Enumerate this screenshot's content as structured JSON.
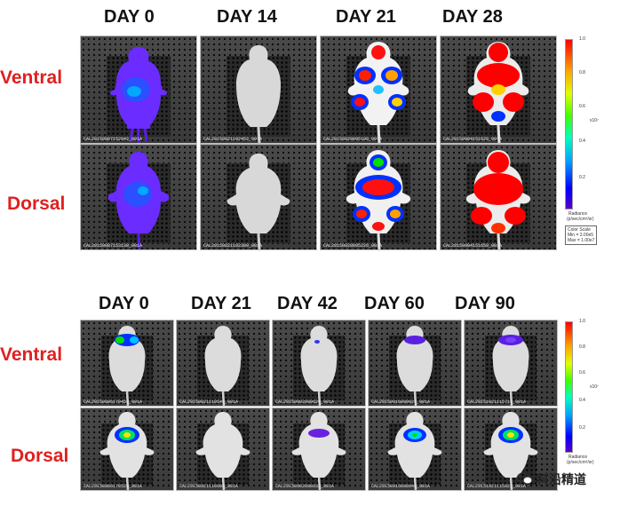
{
  "top": {
    "days": [
      "DAY 0",
      "DAY 14",
      "DAY 21",
      "DAY 28"
    ],
    "rows": [
      "Ventral",
      "Dorsal"
    ],
    "captions": [
      [
        "CAL20150807152942_001A",
        "CAL20150821102452_001A",
        "CAL20150828095108_001A",
        "CAL20150904151628_001A"
      ],
      [
        "CAL20150807153138_001A",
        "CAL20150821102309_001A",
        "CAL20150828095226_001A",
        "CAL20150904151650_001A"
      ]
    ],
    "colorbar": {
      "ticks": [
        "1.0",
        "0.8",
        "0.6",
        "0.4",
        "0.2"
      ],
      "exp": "x10⁷",
      "unit_title": "Radiance",
      "unit": "(p/sec/cm²/sr)",
      "scale_title": "Color Scale",
      "min": "Min = 3.00e5",
      "max": "Max = 1.00e7"
    }
  },
  "bottom": {
    "days": [
      "DAY 0",
      "DAY 21",
      "DAY 42",
      "DAY 60",
      "DAY 90"
    ],
    "rows": [
      "Ventral",
      "Dorsal"
    ],
    "captions": [
      [
        "CAL20150806170453_001A",
        "CAL20150821110549_001A",
        "CAL20150902080624_001A",
        "CAL20150916080027_001A",
        "CAL20151021115717_001A"
      ],
      [
        "CAL20150806170520_001A",
        "CAL20150821110600_001A",
        "CAL20150902080632_001A",
        "CAL20150916080040_001A",
        "CAL20151021115822_001A"
      ]
    ],
    "colorbar": {
      "ticks": [
        "1.0",
        "0.8",
        "0.6",
        "0.4",
        "0.2"
      ],
      "exp": "x10⁷",
      "unit_title": "Radiance",
      "unit": "(p/sec/cm²/sr)"
    }
  },
  "watermark": "科沿精道",
  "colors": {
    "label_red": "#e02020"
  }
}
